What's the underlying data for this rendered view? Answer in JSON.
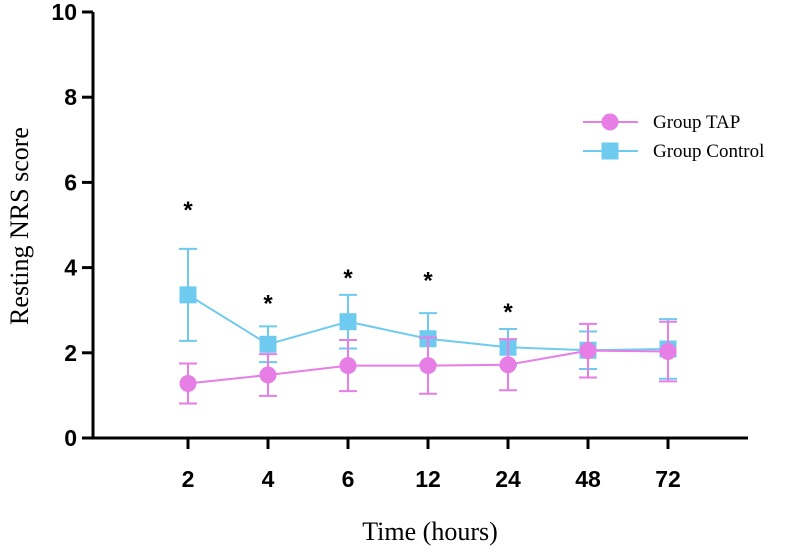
{
  "chart_data": {
    "type": "line",
    "title": "",
    "xlabel": "Time (hours)",
    "ylabel": "Resting NRS score",
    "categories": [
      "2",
      "4",
      "6",
      "12",
      "24",
      "48",
      "72"
    ],
    "ylim": [
      0,
      10
    ],
    "yticks": [
      "0",
      "2",
      "4",
      "6",
      "8",
      "10"
    ],
    "grid": false,
    "legend_position": "top-right",
    "series": [
      {
        "name": "Group TAP",
        "marker": "circle",
        "color": "#e67ee6",
        "values": [
          1.28,
          1.48,
          1.7,
          1.7,
          1.72,
          2.05,
          2.03
        ],
        "error_upper": [
          1.75,
          1.97,
          2.3,
          2.36,
          2.32,
          2.68,
          2.73
        ],
        "error_lower": [
          0.81,
          0.99,
          1.1,
          1.04,
          1.12,
          1.42,
          1.33
        ]
      },
      {
        "name": "Group Control",
        "marker": "square",
        "color": "#6ecbef",
        "values": [
          3.36,
          2.2,
          2.73,
          2.33,
          2.13,
          2.06,
          2.09
        ],
        "error_upper": [
          4.44,
          2.62,
          3.36,
          2.93,
          2.56,
          2.5,
          2.79
        ],
        "error_lower": [
          2.28,
          1.78,
          2.1,
          1.73,
          1.7,
          1.62,
          1.39
        ]
      }
    ],
    "significance": [
      {
        "category": "2",
        "label": "*",
        "y": 5.4
      },
      {
        "category": "4",
        "label": "*",
        "y": 3.2
      },
      {
        "category": "6",
        "label": "*",
        "y": 3.8
      },
      {
        "category": "12",
        "label": "*",
        "y": 3.75
      },
      {
        "category": "24",
        "label": "*",
        "y": 3.0
      }
    ]
  }
}
